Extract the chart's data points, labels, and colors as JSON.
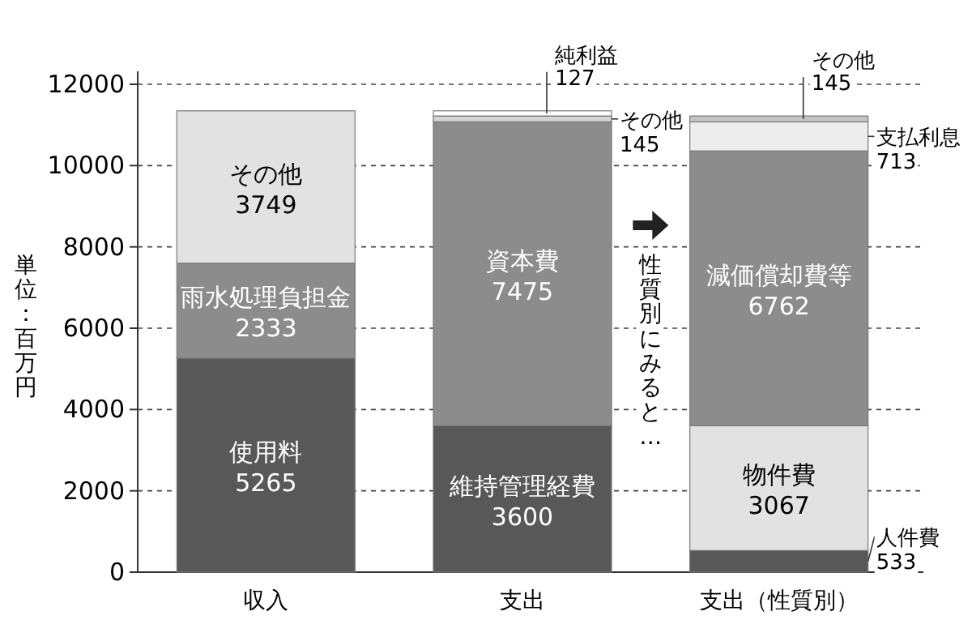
{
  "chart_data": {
    "type": "bar",
    "stacked": true,
    "ylabel": "単位：百万円",
    "categories": [
      "収入",
      "支出",
      "支出（性質別）"
    ],
    "ylim": [
      0,
      12000
    ],
    "yticks": [
      0,
      2000,
      4000,
      6000,
      8000,
      10000,
      12000
    ],
    "grid": "y",
    "data_labels": true,
    "annotations": [
      "性質別にみると…"
    ],
    "series": [
      {
        "name": "使用料",
        "color": "#585858",
        "values": [
          5265,
          null,
          null
        ]
      },
      {
        "name": "雨水処理負担金",
        "color": "#8c8c8c",
        "values": [
          2333,
          null,
          null
        ]
      },
      {
        "name": "その他",
        "color": "#e2e2e2",
        "values": [
          3749,
          null,
          null
        ]
      },
      {
        "name": "維持管理経費",
        "color": "#585858",
        "values": [
          null,
          3600,
          null
        ]
      },
      {
        "name": "資本費",
        "color": "#8c8c8c",
        "values": [
          null,
          7475,
          null
        ]
      },
      {
        "name": "その他",
        "color": "#d4d4d4",
        "values": [
          null,
          145,
          null
        ]
      },
      {
        "name": "純利益",
        "color": "#ffffff",
        "values": [
          null,
          127,
          null
        ]
      },
      {
        "name": "人件費",
        "color": "#585858",
        "values": [
          null,
          null,
          533
        ]
      },
      {
        "name": "物件費",
        "color": "#e2e2e2",
        "values": [
          null,
          null,
          3067
        ]
      },
      {
        "name": "減価償却費等",
        "color": "#8c8c8c",
        "values": [
          null,
          null,
          6762
        ]
      },
      {
        "name": "支払利息",
        "color": "#ededed",
        "values": [
          null,
          null,
          713
        ]
      },
      {
        "name": "その他",
        "color": "#c4c4c4",
        "values": [
          null,
          null,
          145
        ]
      }
    ]
  }
}
